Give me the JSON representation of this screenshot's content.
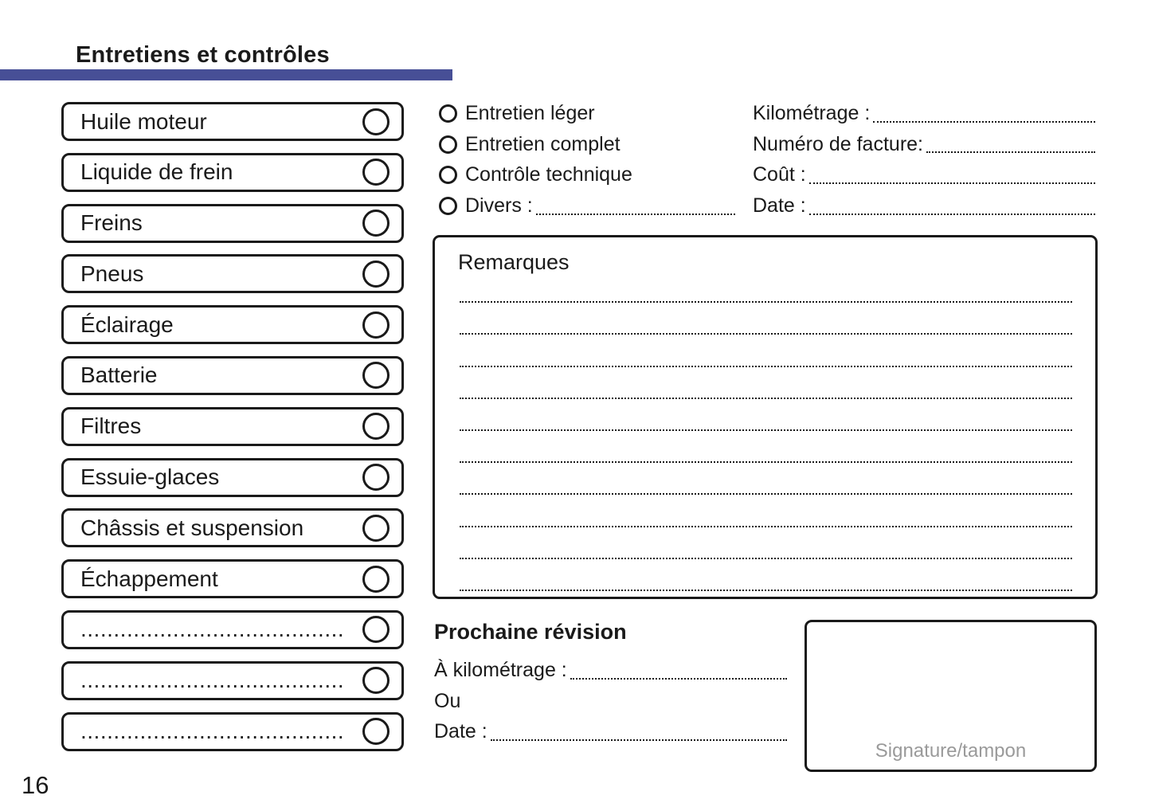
{
  "page": {
    "title": "Entretiens et contrôles",
    "page_number": "16",
    "accent_color": "#474f96",
    "background_color": "#ffffff",
    "text_color": "#1a1a1a",
    "signature_text_color": "#9a9a9a"
  },
  "checklist": {
    "items": [
      {
        "label": "Huile moteur",
        "placeholder": false
      },
      {
        "label": "Liquide de frein",
        "placeholder": false
      },
      {
        "label": "Freins",
        "placeholder": false
      },
      {
        "label": "Pneus",
        "placeholder": false
      },
      {
        "label": "Éclairage",
        "placeholder": false
      },
      {
        "label": "Batterie",
        "placeholder": false
      },
      {
        "label": "Filtres",
        "placeholder": false
      },
      {
        "label": "Essuie-glaces",
        "placeholder": false
      },
      {
        "label": "Châssis et suspension",
        "placeholder": false
      },
      {
        "label": "Échappement",
        "placeholder": false
      },
      {
        "label": "........................................",
        "placeholder": true
      },
      {
        "label": "........................................",
        "placeholder": true
      },
      {
        "label": "........................................",
        "placeholder": true
      }
    ]
  },
  "service_type": {
    "options": [
      {
        "label": "Entretien léger",
        "leader": false
      },
      {
        "label": "Entretien complet",
        "leader": false
      },
      {
        "label": "Contrôle technique",
        "leader": false
      },
      {
        "label": "Divers :",
        "leader": true
      }
    ]
  },
  "invoice_fields": {
    "rows": [
      {
        "label": "Kilométrage :"
      },
      {
        "label": "Numéro de facture:"
      },
      {
        "label": "Coût :"
      },
      {
        "label": "Date :"
      }
    ]
  },
  "remarks": {
    "title": "Remarques",
    "line_count": 10
  },
  "next_service": {
    "title": "Prochaine révision",
    "rows": [
      {
        "label": "À kilométrage :",
        "leader": true
      },
      {
        "label": "Ou",
        "leader": false
      },
      {
        "label": "Date :",
        "leader": true
      }
    ]
  },
  "signature": {
    "label": "Signature/tampon"
  }
}
